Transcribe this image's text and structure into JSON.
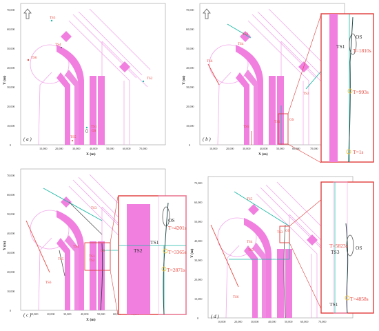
{
  "panels": [
    {
      "caption": "( a )",
      "ships": {
        "ts1": "TS1",
        "os": "OS",
        "ts2": "TS2",
        "ts3": "TS3",
        "ts4": "TS4",
        "ts5": "TS5",
        "ts6": "TS6"
      }
    },
    {
      "caption": "( b )",
      "ships": {
        "ts1": "TS1",
        "os": "OS",
        "ts2": "TS2",
        "ts3": "TS3",
        "ts4": "TS4",
        "ts5": "TS5",
        "ts6": "TS6"
      }
    },
    {
      "caption": "( c )",
      "ships": {
        "ts1": "TS1",
        "os": "OS",
        "ts2": "TS2",
        "ts3": "TS3",
        "ts4": "TS4",
        "ts5": "TS5",
        "ts6": "TS6"
      }
    },
    {
      "caption": "( d )",
      "ships": {
        "ts1": "TS1",
        "os": "OS",
        "ts2": "TS2",
        "ts3": "TS3",
        "ts4": "TS4",
        "ts5": "TS5",
        "ts6": "TS6"
      }
    }
  ],
  "axes": {
    "x_label": "X (m)",
    "y_label": "Y (m)",
    "x_ticks": [
      "10,000",
      "20,000",
      "30,000",
      "40,000",
      "50,000",
      "60,000",
      "70,000"
    ],
    "y_ticks": [
      "0",
      "10,000",
      "20,000",
      "30,000",
      "40,000",
      "50,000",
      "60,000",
      "70,000"
    ]
  },
  "zoom_b": {
    "os": "OS",
    "ts1": "TS1",
    "t1": "T=1810s",
    "t2": "T=993s",
    "t3": "T=1s"
  },
  "zoom_c": {
    "os": "OS",
    "ts1": "TS1",
    "ts2": "TS2",
    "t1": "T=4201s",
    "t2": "T=3365s",
    "t3": "T=2871s"
  },
  "zoom_d": {
    "os": "OS",
    "ts3": "TS3",
    "ts1": "TS1",
    "t1": "T=5823s",
    "t2": "T=4858s"
  },
  "colors": {
    "zone": "#f07fe0",
    "zone_line": "#f2a6ea",
    "track_red": "#e8473f",
    "track_teal": "#1bb9a6",
    "track_dark": "#1d4a46",
    "track_grey": "#555555",
    "zoom_frame": "#e03b3b",
    "marker": "#f4c542"
  }
}
